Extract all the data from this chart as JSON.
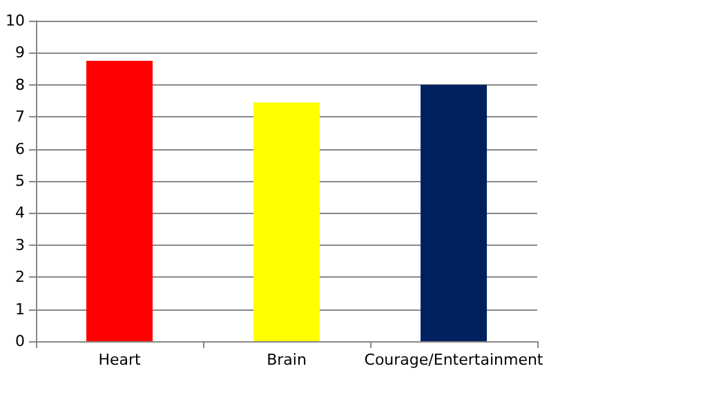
{
  "chart_data": {
    "type": "bar",
    "categories": [
      "Heart",
      "Brain",
      "Courage/Entertainment"
    ],
    "values": [
      8.75,
      7.45,
      8.0
    ],
    "colors": [
      "#ff0000",
      "#ffff00",
      "#002060"
    ],
    "ylim": [
      0,
      10
    ],
    "yticks": [
      0,
      1,
      2,
      3,
      4,
      5,
      6,
      7,
      8,
      9,
      10
    ],
    "grid": "y"
  }
}
